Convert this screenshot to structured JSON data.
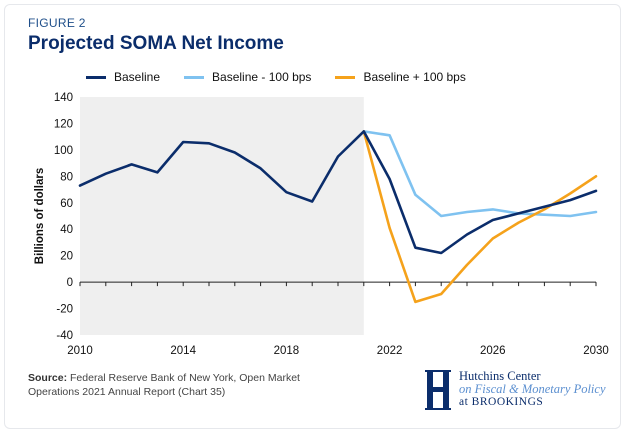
{
  "figure_label": "FIGURE 2",
  "title": "Projected SOMA Net Income",
  "source_label": "Source:",
  "source_text": "Federal Reserve Bank of New York, Open Market Operations 2021 Annual Report (Chart 35)",
  "brand": {
    "line1": "Hutchins Center",
    "line2": "on Fiscal & Monetary Policy",
    "line3": "at BROOKINGS"
  },
  "chart_data": {
    "type": "line",
    "ylabel": "Billions of dollars",
    "xlim": [
      2010,
      2030
    ],
    "ylim": [
      -40,
      140
    ],
    "x_ticks": [
      "2010",
      "2014",
      "2018",
      "2022",
      "2026",
      "2030"
    ],
    "y_ticks": [
      "140",
      "120",
      "100",
      "80",
      "60",
      "40",
      "20",
      "0",
      "-20",
      "-40"
    ],
    "shaded_region": [
      2010,
      2021
    ],
    "grid": false,
    "legend_position": "top",
    "series": [
      {
        "name": "Baseline",
        "color": "#0b2d6b",
        "x": [
          2010,
          2011,
          2012,
          2013,
          2014,
          2015,
          2016,
          2017,
          2018,
          2019,
          2020,
          2021,
          2022,
          2023,
          2024,
          2025,
          2026,
          2027,
          2028,
          2029,
          2030
        ],
        "y": [
          73,
          82,
          89,
          83,
          106,
          105,
          98,
          86,
          68,
          61,
          95,
          114,
          78,
          26,
          22,
          36,
          47,
          52,
          57,
          62,
          69
        ]
      },
      {
        "name": "Baseline - 100 bps",
        "color": "#7fc2f0",
        "x": [
          2021,
          2022,
          2023,
          2024,
          2025,
          2026,
          2027,
          2028,
          2029,
          2030
        ],
        "y": [
          114,
          111,
          66,
          50,
          53,
          55,
          52,
          51,
          50,
          53
        ]
      },
      {
        "name": "Baseline + 100 bps",
        "color": "#f5a21b",
        "x": [
          2021,
          2022,
          2023,
          2024,
          2025,
          2026,
          2027,
          2028,
          2029,
          2030
        ],
        "y": [
          114,
          41,
          -15,
          -9,
          13,
          33,
          45,
          55,
          67,
          80
        ]
      }
    ]
  }
}
